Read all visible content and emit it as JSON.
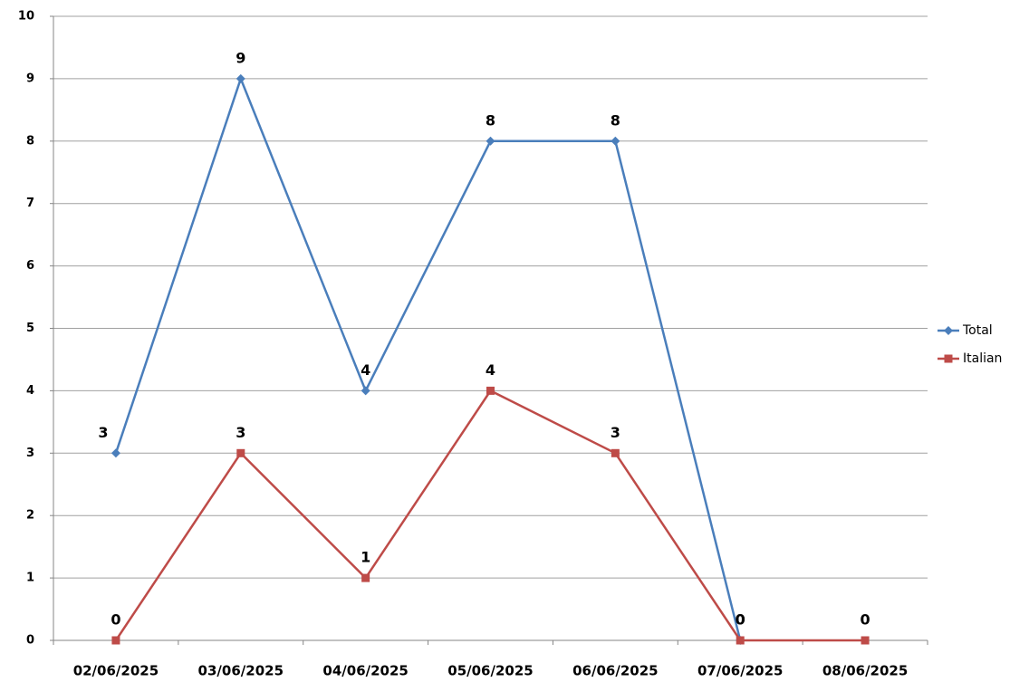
{
  "chart_data": {
    "type": "line",
    "categories": [
      "02/06/2025",
      "03/06/2025",
      "04/06/2025",
      "05/06/2025",
      "06/06/2025",
      "07/06/2025",
      "08/06/2025"
    ],
    "series": [
      {
        "name": "Total",
        "color": "#4a7ebb",
        "marker": "diamond",
        "values": [
          3,
          9,
          4,
          8,
          8,
          0,
          null
        ]
      },
      {
        "name": "Italian",
        "color": "#be4b48",
        "marker": "square",
        "values": [
          0,
          3,
          1,
          4,
          3,
          0,
          0
        ]
      }
    ],
    "ylim": [
      0,
      10
    ],
    "yticks": [
      0,
      1,
      2,
      3,
      4,
      5,
      6,
      7,
      8,
      9,
      10
    ],
    "grid": true,
    "legend": "right"
  }
}
